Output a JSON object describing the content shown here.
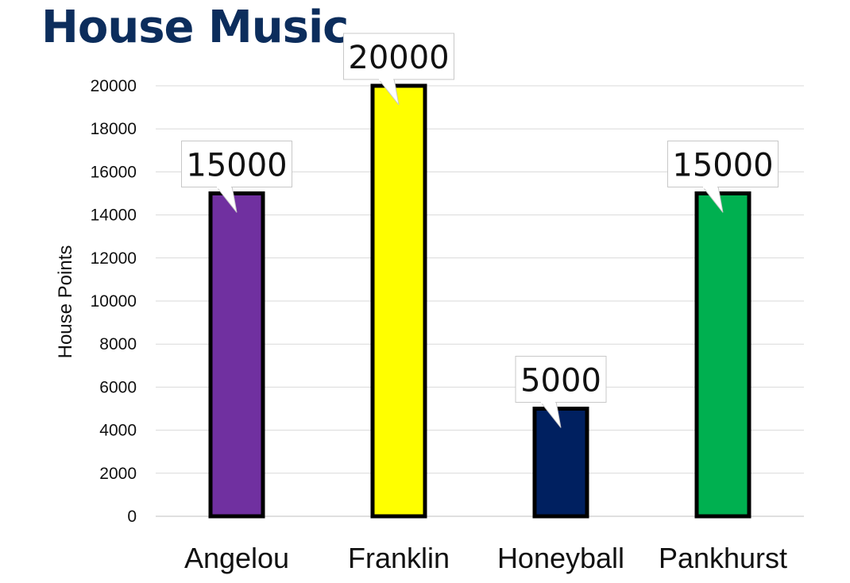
{
  "chart_data": {
    "type": "bar",
    "title": "House Music",
    "ylabel": "House Points",
    "xlabel": "",
    "categories": [
      "Angelou",
      "Franklin",
      "Honeyball",
      "Pankhurst"
    ],
    "values": [
      15000,
      20000,
      5000,
      15000
    ],
    "data_labels": [
      "15000",
      "20000",
      "5000",
      "15000"
    ],
    "colors": [
      "#7030a0",
      "#ffff00",
      "#002060",
      "#00b050"
    ],
    "ylim": [
      0,
      20000
    ],
    "yticks": [
      0,
      2000,
      4000,
      6000,
      8000,
      10000,
      12000,
      14000,
      16000,
      18000,
      20000
    ],
    "ytick_labels": [
      "0",
      "2000",
      "4000",
      "6000",
      "8000",
      "10000",
      "12000",
      "14000",
      "16000",
      "18000",
      "20000"
    ],
    "grid": true,
    "legend": "none"
  }
}
